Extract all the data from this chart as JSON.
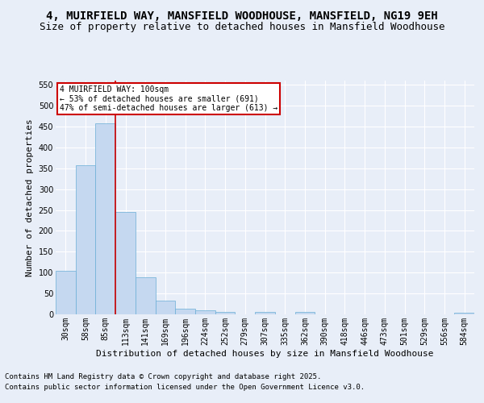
{
  "title": "4, MUIRFIELD WAY, MANSFIELD WOODHOUSE, MANSFIELD, NG19 9EH",
  "subtitle": "Size of property relative to detached houses in Mansfield Woodhouse",
  "xlabel": "Distribution of detached houses by size in Mansfield Woodhouse",
  "ylabel": "Number of detached properties",
  "footer_line1": "Contains HM Land Registry data © Crown copyright and database right 2025.",
  "footer_line2": "Contains public sector information licensed under the Open Government Licence v3.0.",
  "categories": [
    "30sqm",
    "58sqm",
    "85sqm",
    "113sqm",
    "141sqm",
    "169sqm",
    "196sqm",
    "224sqm",
    "252sqm",
    "279sqm",
    "307sqm",
    "335sqm",
    "362sqm",
    "390sqm",
    "418sqm",
    "446sqm",
    "473sqm",
    "501sqm",
    "529sqm",
    "556sqm",
    "584sqm"
  ],
  "values": [
    105,
    357,
    457,
    245,
    89,
    32,
    13,
    9,
    6,
    0,
    5,
    0,
    5,
    0,
    0,
    0,
    0,
    0,
    0,
    0,
    4
  ],
  "bar_color": "#c5d8f0",
  "bar_edge_color": "#6aaed6",
  "red_line_bar_index": 2,
  "annotation_text": "4 MUIRFIELD WAY: 100sqm\n← 53% of detached houses are smaller (691)\n47% of semi-detached houses are larger (613) →",
  "annotation_box_color": "#ffffff",
  "annotation_box_edge": "#cc0000",
  "ylim": [
    0,
    560
  ],
  "yticks": [
    0,
    50,
    100,
    150,
    200,
    250,
    300,
    350,
    400,
    450,
    500,
    550
  ],
  "bg_color": "#e8eef8",
  "plot_bg_color": "#e8eef8",
  "grid_color": "#ffffff",
  "title_fontsize": 10,
  "subtitle_fontsize": 9,
  "label_fontsize": 8,
  "tick_fontsize": 7,
  "footer_fontsize": 6.5
}
